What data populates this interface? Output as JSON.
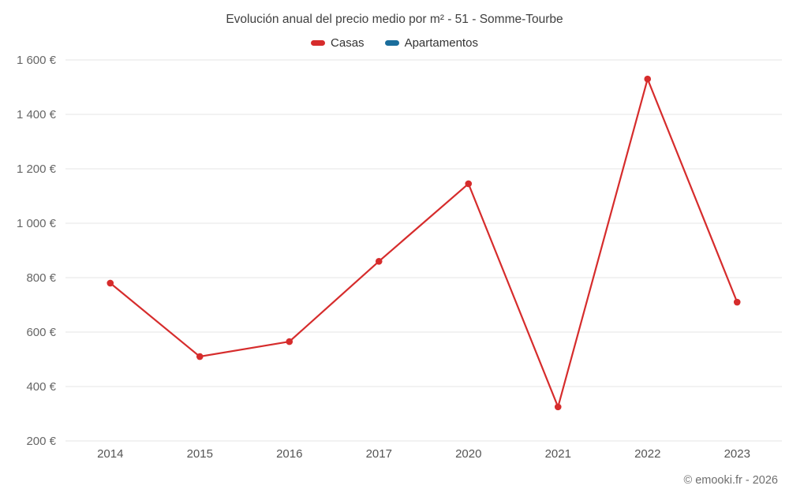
{
  "chart_data": {
    "type": "line",
    "title": "Evolución anual del precio medio por m² - 51 - Somme-Tourbe",
    "categories": [
      "2014",
      "2015",
      "2016",
      "2017",
      "2020",
      "2021",
      "2022",
      "2023"
    ],
    "series": [
      {
        "name": "Casas",
        "color": "#d62c2c",
        "values": [
          780,
          510,
          565,
          860,
          1145,
          325,
          1530,
          710
        ]
      },
      {
        "name": "Apartamentos",
        "color": "#1a6d9c",
        "values": []
      }
    ],
    "ylim": [
      200,
      1600
    ],
    "y_tick_step": 200,
    "y_tick_labels": [
      "200 €",
      "400 €",
      "600 €",
      "800 €",
      "1 000 €",
      "1 200 €",
      "1 400 €",
      "1 600 €"
    ],
    "grid": true,
    "legend_position": "top",
    "grid_color": "#e6e6e6",
    "axis_label_color": "#666666",
    "x_label_color": "#555555"
  },
  "footer": {
    "credit": "© emooki.fr - 2026"
  }
}
